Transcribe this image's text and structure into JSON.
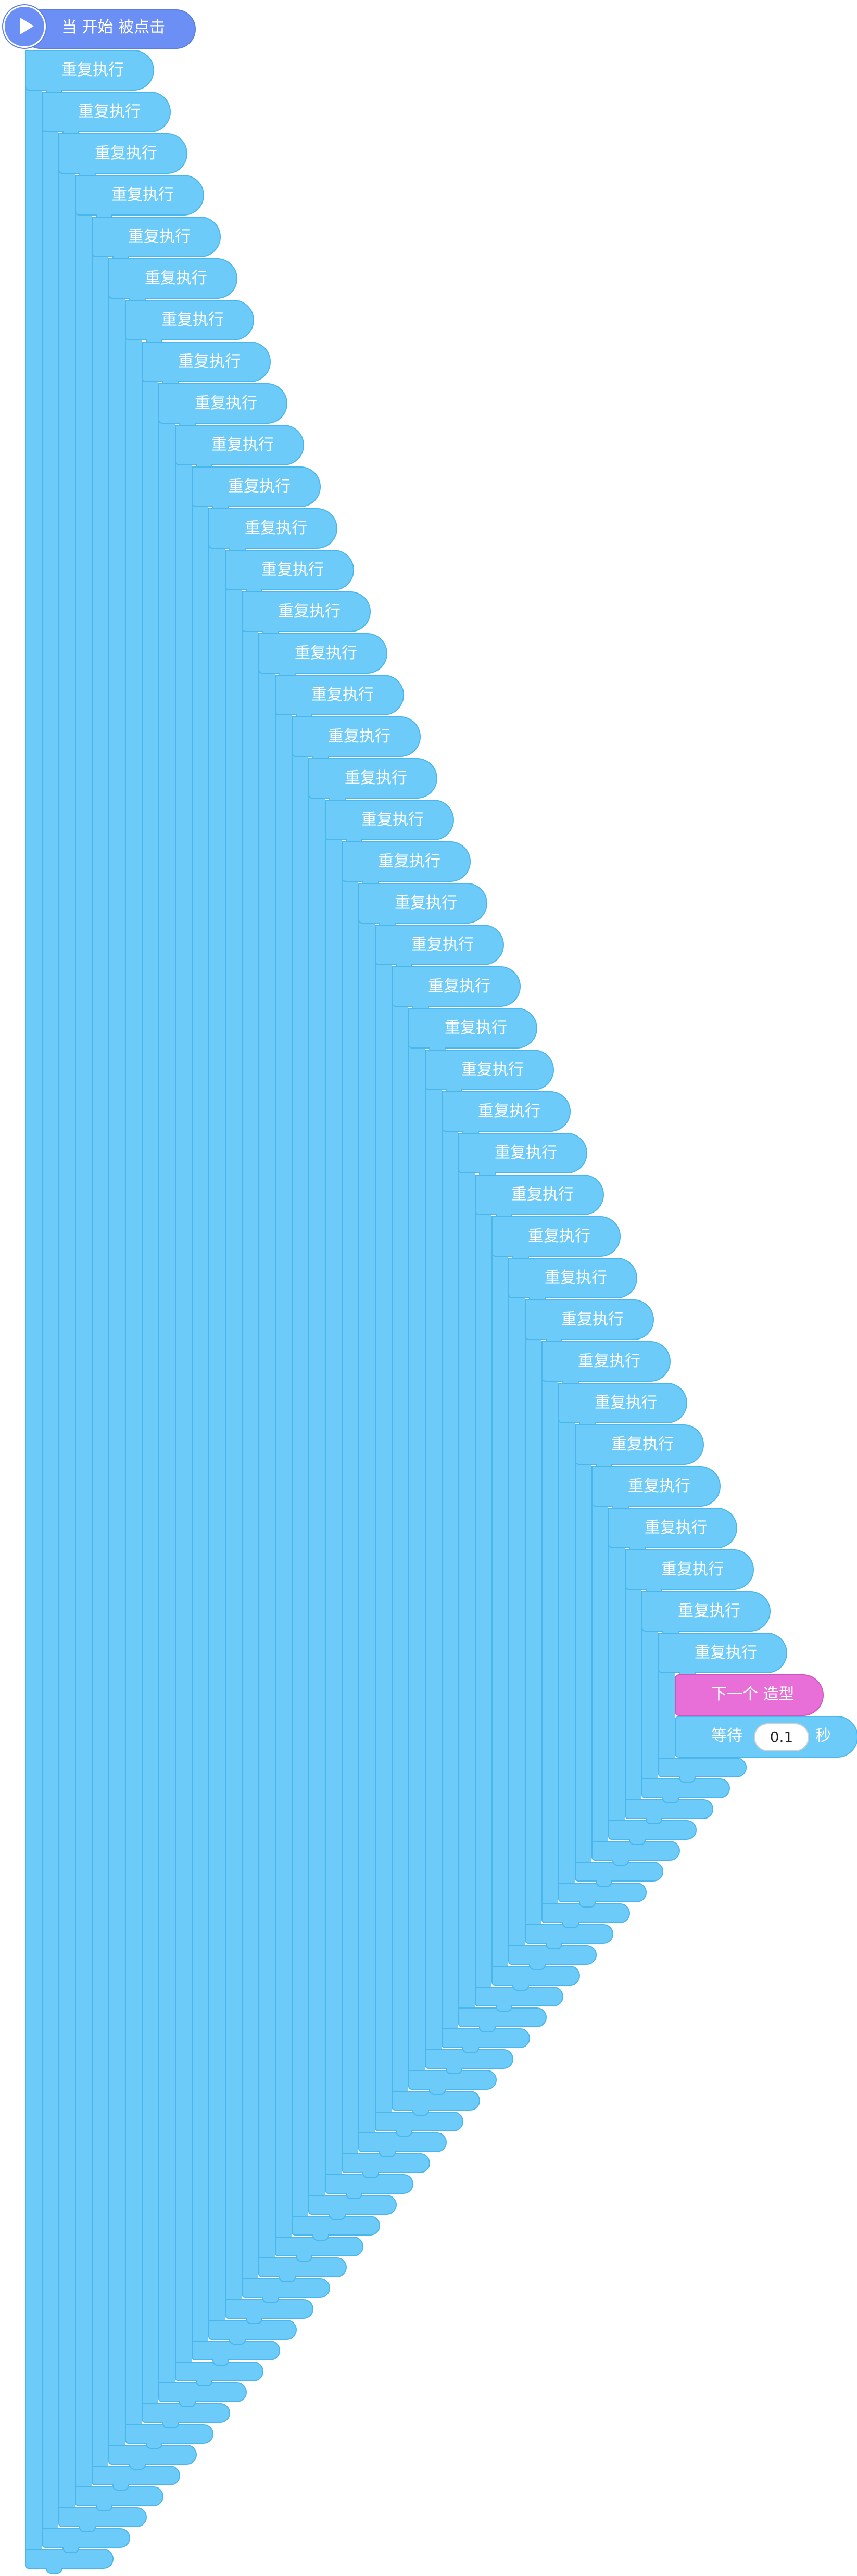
{
  "script": {
    "hat": {
      "label": "当 开始 被点击",
      "icon": "play-icon",
      "color": "#6b8ff5"
    },
    "repeat_label": "重复执行",
    "repeat_count": 39,
    "inner_blocks": [
      {
        "type": "looks",
        "label": "下一个 造型",
        "color": "#e86fd8"
      },
      {
        "type": "control",
        "label_before": "等待",
        "value": "0.1",
        "label_after": "秒",
        "color": "#6dcbfa"
      }
    ]
  }
}
